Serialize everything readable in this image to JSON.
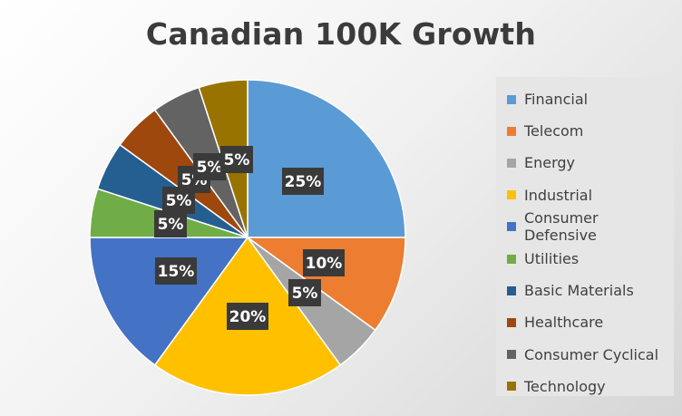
{
  "chart_data": {
    "type": "pie",
    "title": "Canadian 100K Growth",
    "legend_position": "right",
    "slices": [
      {
        "name": "Financial",
        "value": 25,
        "label": "25%",
        "color": "#5B9BD5"
      },
      {
        "name": "Telecom",
        "value": 10,
        "label": "10%",
        "color": "#ED7D31"
      },
      {
        "name": "Energy",
        "value": 5,
        "label": "5%",
        "color": "#A5A5A5"
      },
      {
        "name": "Industrial",
        "value": 20,
        "label": "20%",
        "color": "#FFC000"
      },
      {
        "name": "Consumer Defensive",
        "value": 15,
        "label": "15%",
        "color": "#4472C4"
      },
      {
        "name": "Utilities",
        "value": 5,
        "label": "5%",
        "color": "#70AD47"
      },
      {
        "name": "Basic Materials",
        "value": 5,
        "label": "5%",
        "color": "#255E91"
      },
      {
        "name": "Healthcare",
        "value": 5,
        "label": "5%",
        "color": "#9E480E"
      },
      {
        "name": "Consumer Cyclical",
        "value": 5,
        "label": "5%",
        "color": "#636363"
      },
      {
        "name": "Technology",
        "value": 5,
        "label": "5%",
        "color": "#997300"
      }
    ]
  }
}
